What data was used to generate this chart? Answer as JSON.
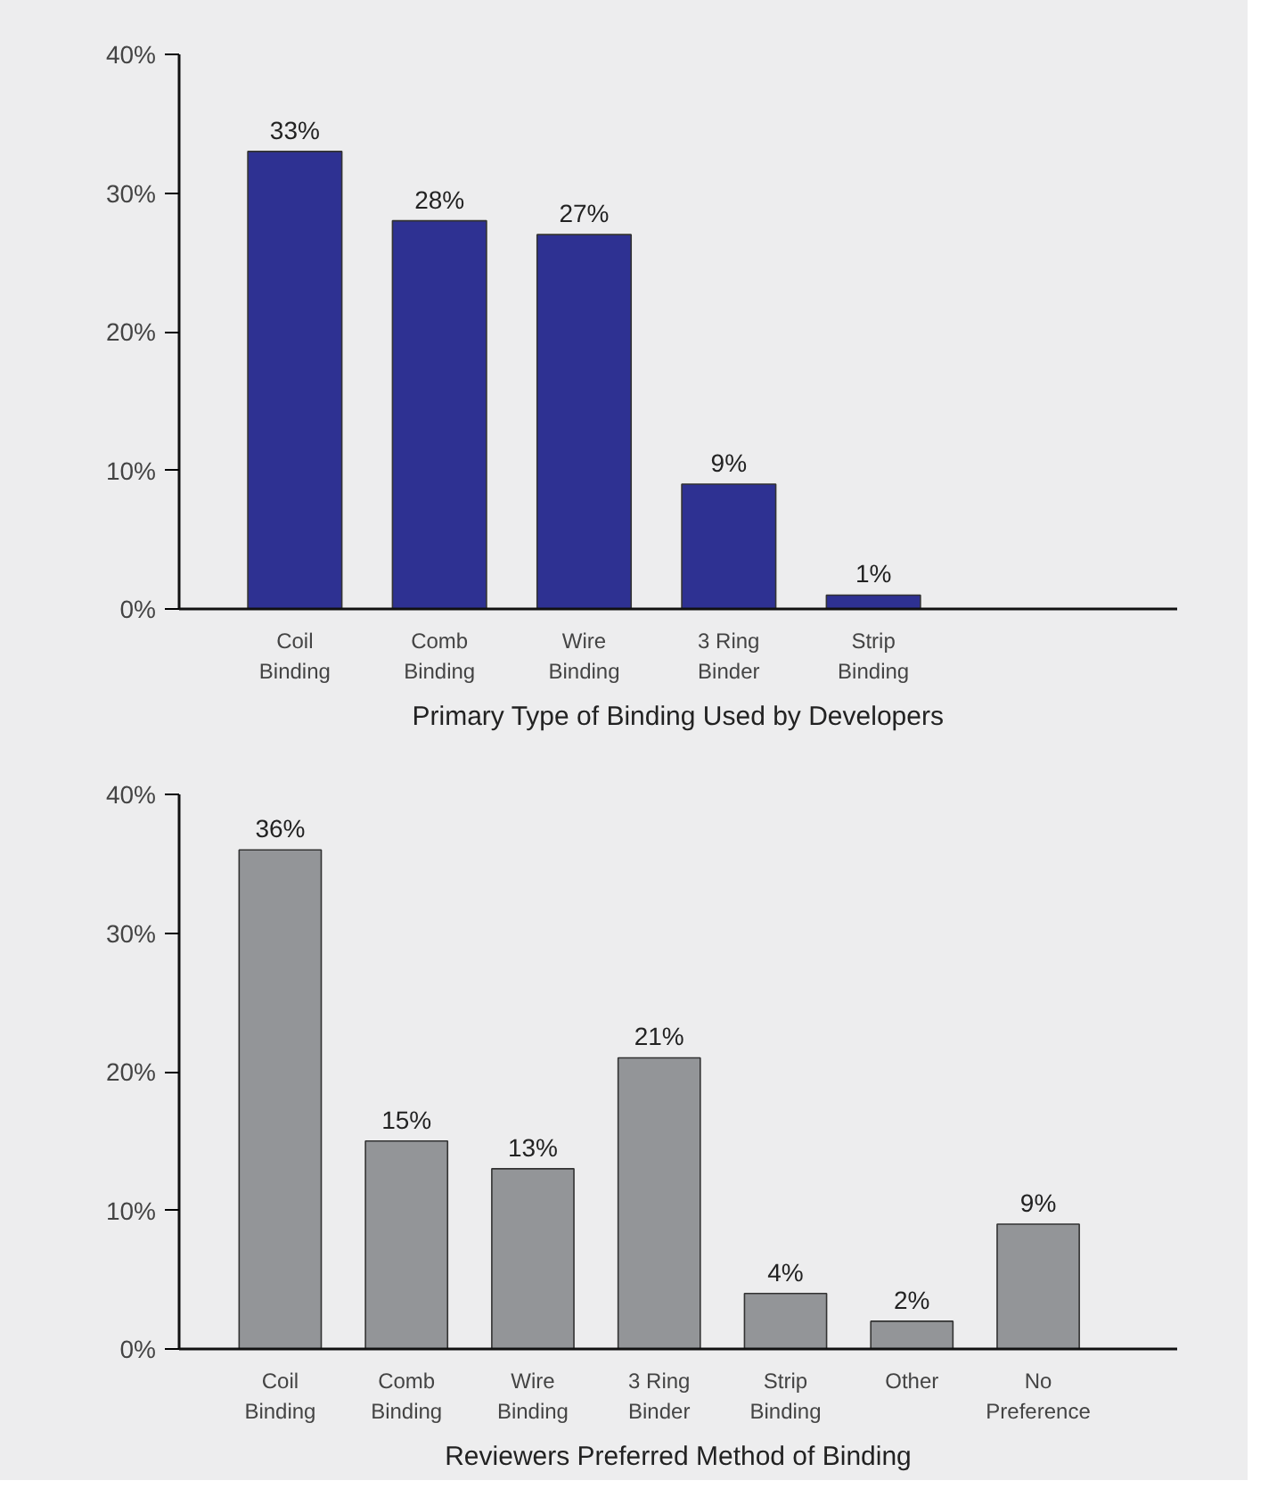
{
  "chart_data": [
    {
      "type": "bar",
      "title": "Primary Type of Binding Used by Developers",
      "categories": [
        "Coil Binding",
        "Comb Binding",
        "Wire Binding",
        "3 Ring Binder",
        "Strip Binding"
      ],
      "values": [
        33,
        28,
        27,
        9,
        1
      ],
      "color": "#2e3192",
      "data_labels": true,
      "value_labels": [
        "33%",
        "28%",
        "27%",
        "9%",
        "1%"
      ],
      "ylim": [
        0,
        40
      ],
      "yticks": [
        {
          "value": 0,
          "label": "0%"
        },
        {
          "value": 10,
          "label": "10%"
        },
        {
          "value": 20,
          "label": "20%"
        },
        {
          "value": 30,
          "label": "30%"
        },
        {
          "value": 40,
          "label": "40%"
        }
      ],
      "grid": false
    },
    {
      "type": "bar",
      "title": "Reviewers Preferred Method of Binding",
      "categories": [
        "Coil Binding",
        "Comb Binding",
        "Wire Binding",
        "3 Ring Binder",
        "Strip Binding",
        "Other",
        "No Preference"
      ],
      "values": [
        36,
        15,
        13,
        21,
        4,
        2,
        9
      ],
      "color": "#939598",
      "data_labels": true,
      "value_labels": [
        "36%",
        "15%",
        "13%",
        "21%",
        "4%",
        "2%",
        "9%"
      ],
      "ylim": [
        0,
        40
      ],
      "yticks": [
        {
          "value": 0,
          "label": "0%"
        },
        {
          "value": 10,
          "label": "10%"
        },
        {
          "value": 20,
          "label": "20%"
        },
        {
          "value": 30,
          "label": "30%"
        },
        {
          "value": 40,
          "label": "40%"
        }
      ],
      "grid": false
    }
  ]
}
